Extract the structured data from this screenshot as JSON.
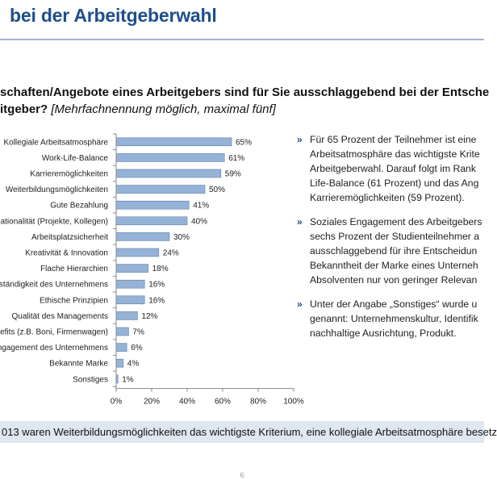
{
  "slide": {
    "title": "bei der Arbeitgeberwahl",
    "question_main": "schaften/Angebote eines Arbeitgebers sind für Sie ausschlaggebend bei der Entsche",
    "question_line2": "itgeber?",
    "question_note": "[Mehrfachnennung möglich, maximal fünf]",
    "footer": "013 waren Weiterbildungsmöglichkeiten das wichtigste Kriterium, eine kollegiale Arbeitsatmosphäre besetz",
    "page_number": "6"
  },
  "bullets": [
    {
      "marker": "»",
      "lines": [
        "Für 65 Prozent der Teilnehmer ist eine",
        "Arbeitsatmosphäre das wichtigste Krite",
        "Arbeitgeberwahl. Darauf folgt im Rank",
        "Life-Balance (61 Prozent) und das Ang",
        "Karrieremöglichkeiten (59 Prozent)."
      ]
    },
    {
      "marker": "»",
      "lines": [
        "Soziales Engagement des Arbeitgebers",
        "sechs Prozent der Studienteilnehmer a",
        "ausschlaggebend für ihre Entscheidun",
        "Bekanntheit der Marke eines Unterneh",
        "Absolventen nur von geringer Relevan"
      ]
    },
    {
      "marker": "»",
      "lines": [
        "Unter der Angabe „Sonstiges“ wurde u",
        "genannt: Unternehmenskultur, Identifik",
        "nachhaltige Ausrichtung, Produkt."
      ]
    }
  ],
  "chart_data": {
    "type": "bar",
    "orientation": "horizontal",
    "categories": [
      "Kollegiale Arbeitsatmosphäre",
      "Work-Life-Balance",
      "Karrieremöglichkeiten",
      "Weiterbildungsmöglichkeiten",
      "Gute Bezahlung",
      "ationalität (Projekte, Kollegen)",
      "Arbeitsplatzsicherheit",
      "Kreativität & Innovation",
      "Flache Hierarchien",
      "ständigkeit des Unternehmens",
      "Ethische Prinzipien",
      "Qualität des Managements",
      "efits (z.B. Boni, Firmenwagen)",
      "ngagement des Unternehmens",
      "Bekannte Marke",
      "Sonstiges"
    ],
    "values": [
      65,
      61,
      59,
      50,
      41,
      40,
      30,
      24,
      18,
      16,
      16,
      12,
      7,
      6,
      4,
      1
    ],
    "value_labels": [
      "65%",
      "61%",
      "59%",
      "50%",
      "41%",
      "40%",
      "30%",
      "24%",
      "18%",
      "16%",
      "16%",
      "12%",
      "7%",
      "6%",
      "4%",
      "1%"
    ],
    "xlim": [
      0,
      100
    ],
    "xticks": [
      "0%",
      "20%",
      "40%",
      "60%",
      "80%",
      "100%"
    ],
    "xtick_values": [
      0,
      20,
      40,
      60,
      80,
      100
    ],
    "bar_color": "#95b3d7",
    "bar_edge_color": "#5f7fa8",
    "grid": false,
    "title": "",
    "xlabel": "",
    "ylabel": ""
  }
}
